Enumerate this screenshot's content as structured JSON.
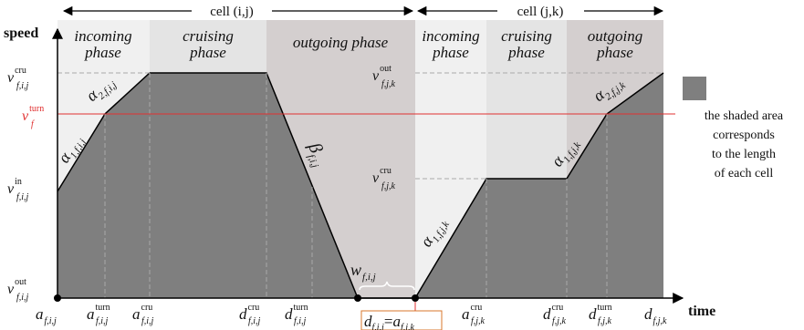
{
  "cells": {
    "cell_ij": "cell (i,j)",
    "cell_jk": "cell (j,k)"
  },
  "axes": {
    "y_label": "speed",
    "x_label": "time"
  },
  "phases": {
    "incoming_ij": [
      "incoming",
      "phase"
    ],
    "cruising_ij": [
      "cruising",
      "phase"
    ],
    "outgoing_ij": "outgoing phase",
    "incoming_jk": [
      "incoming",
      "phase"
    ],
    "cruising_jk": [
      "cruising",
      "phase"
    ],
    "outgoing_jk": [
      "outgoing",
      "phase"
    ]
  },
  "y_labels": {
    "v_cru_ij": {
      "base": "v",
      "sup": "cru",
      "sub": "f,i,j"
    },
    "v_turn": {
      "base": "v",
      "sup": "turn",
      "sub": "f"
    },
    "v_in_ij": {
      "base": "v",
      "sup": "in",
      "sub": "f,i,j"
    },
    "v_out_ij": {
      "base": "v",
      "sup": "out",
      "sub": "f,i,j"
    },
    "v_out_jk": {
      "base": "v",
      "sup": "out",
      "sub": "f,j,k"
    },
    "v_cru_jk": {
      "base": "v",
      "sup": "cru",
      "sub": "f,j,k"
    }
  },
  "x_labels": {
    "a_ij": {
      "base": "a",
      "sub": "f,i,j"
    },
    "a_turn_ij": {
      "base": "a",
      "sup": "turn",
      "sub": "f,i,j"
    },
    "a_cru_ij": {
      "base": "a",
      "sup": "cru",
      "sub": "f,i,j"
    },
    "d_cru_ij": {
      "base": "d",
      "sup": "cru",
      "sub": "f,i,j"
    },
    "d_turn_ij": {
      "base": "d",
      "sup": "turn",
      "sub": "f,i,j"
    },
    "d_a_eq": {
      "left": "d",
      "left_sub": "f,i,j",
      "eq": "=",
      "right": "a",
      "right_sub": "f,j,k"
    },
    "a_cru_jk": {
      "base": "a",
      "sup": "cru",
      "sub": "f,j,k"
    },
    "d_cru_jk": {
      "base": "d",
      "sup": "cru",
      "sub": "f,j,k"
    },
    "d_turn_jk": {
      "base": "d",
      "sup": "turn",
      "sub": "f,j,k"
    },
    "d_jk": {
      "base": "d",
      "sub": "f,j,k"
    }
  },
  "slopes": {
    "alpha1_ij": {
      "base": "α",
      "sub": "1,f,i,j"
    },
    "alpha2_ij": {
      "base": "α",
      "sub": "2,f,i,j"
    },
    "beta_ij": {
      "base": "β",
      "sub": "f,i,j"
    },
    "alpha1_jk_low": {
      "base": "α",
      "sub": "1,f,j,k"
    },
    "alpha1_jk_mid": {
      "base": "α",
      "sub": "1,f,j,k"
    },
    "alpha2_jk": {
      "base": "α",
      "sub": "2,f,j,k"
    }
  },
  "wait": {
    "base": "w",
    "sub": "f,i,j"
  },
  "legend": {
    "lines": [
      "the shaded area",
      "corresponds",
      "to the length",
      "of each cell"
    ]
  },
  "colors": {
    "shade": "#7f7f7f",
    "turn_line": "#e03030",
    "turn_label": "#e03030",
    "box_border": "#d9772b",
    "bg_incoming": "#f0f0f0",
    "bg_cruising": "#e4e4e4",
    "bg_outgoing": "#d4cfcf"
  }
}
